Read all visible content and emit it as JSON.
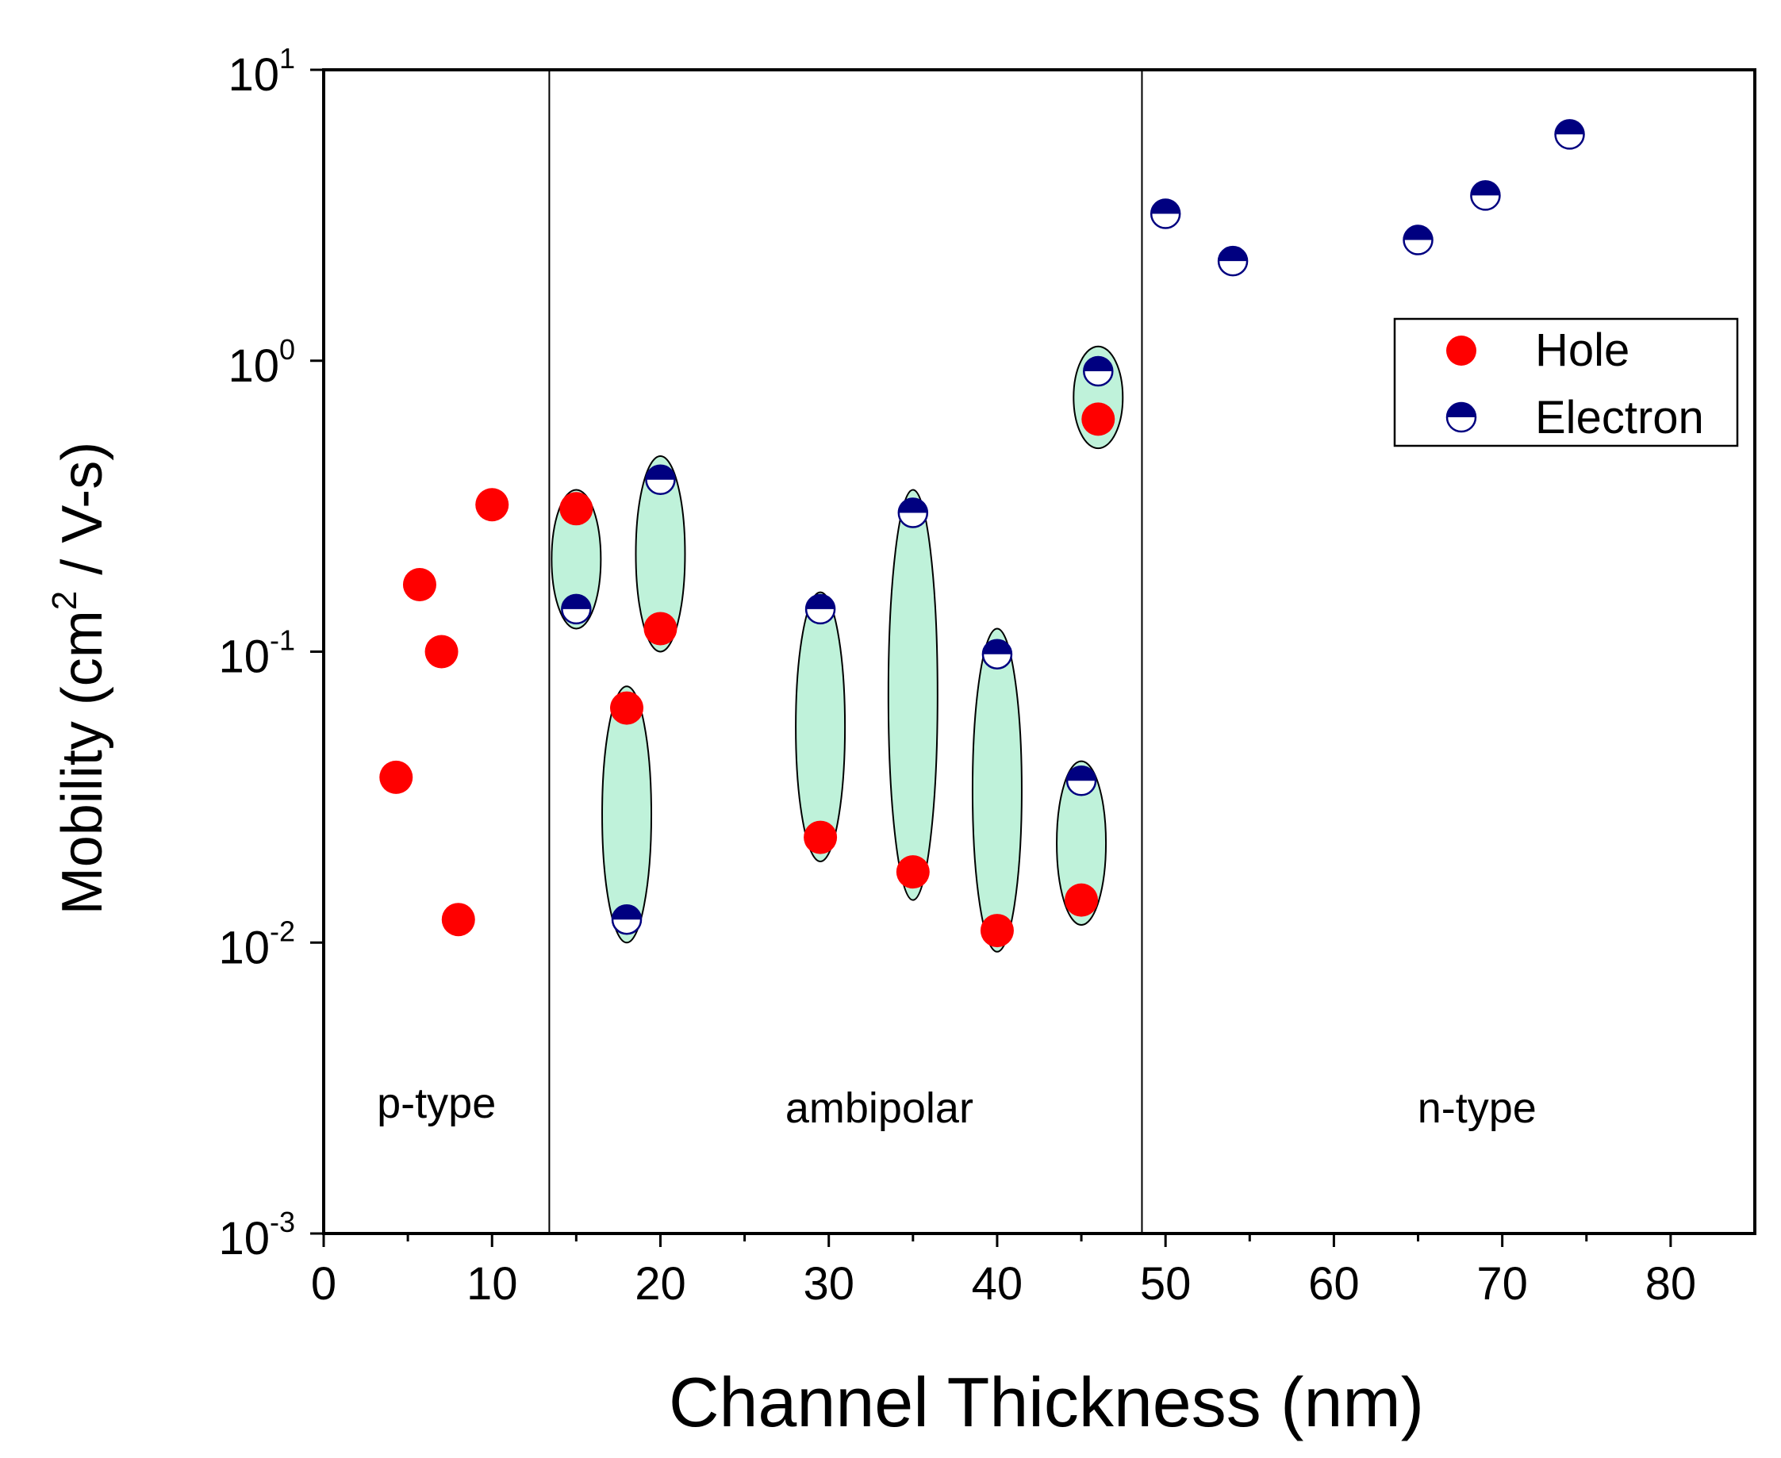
{
  "chart_data": {
    "type": "scatter",
    "title": "",
    "xlabel": "Channel Thickness (nm)",
    "ylabel": {
      "prefix": "Mobility (cm",
      "sup": "2",
      "suffix": " / V-s)"
    },
    "xlim": [
      0,
      85
    ],
    "ylim": [
      0.001,
      10
    ],
    "yscale": "log",
    "xticks": [
      0,
      10,
      20,
      30,
      40,
      50,
      60,
      70,
      80
    ],
    "yticks": [
      {
        "value": 0.001,
        "base": "10",
        "exp": "-3"
      },
      {
        "value": 0.01,
        "base": "10",
        "exp": "-2"
      },
      {
        "value": 0.1,
        "base": "10",
        "exp": "-1"
      },
      {
        "value": 1,
        "base": "10",
        "exp": "0"
      },
      {
        "value": 10,
        "base": "10",
        "exp": "1"
      }
    ],
    "grid": false,
    "legend_position": "top-right",
    "series": [
      {
        "name": "Hole",
        "color": "#ff0000",
        "marker": "filled-circle",
        "points": [
          {
            "x": 4.3,
            "y": 0.037
          },
          {
            "x": 5.7,
            "y": 0.17
          },
          {
            "x": 7.0,
            "y": 0.1
          },
          {
            "x": 8.0,
            "y": 0.012
          },
          {
            "x": 10.0,
            "y": 0.32
          },
          {
            "x": 15.0,
            "y": 0.31
          },
          {
            "x": 18.0,
            "y": 0.064
          },
          {
            "x": 20.0,
            "y": 0.12
          },
          {
            "x": 29.5,
            "y": 0.023
          },
          {
            "x": 35.0,
            "y": 0.0175
          },
          {
            "x": 40.0,
            "y": 0.011
          },
          {
            "x": 45.0,
            "y": 0.014
          },
          {
            "x": 46.0,
            "y": 0.63
          }
        ]
      },
      {
        "name": "Electron",
        "color": "#000080",
        "marker": "half-filled-circle",
        "points": [
          {
            "x": 15.0,
            "y": 0.14
          },
          {
            "x": 18.0,
            "y": 0.012
          },
          {
            "x": 20.0,
            "y": 0.39
          },
          {
            "x": 29.5,
            "y": 0.14
          },
          {
            "x": 35.0,
            "y": 0.3
          },
          {
            "x": 40.0,
            "y": 0.098
          },
          {
            "x": 45.0,
            "y": 0.036
          },
          {
            "x": 46.0,
            "y": 0.92
          },
          {
            "x": 50.0,
            "y": 3.2
          },
          {
            "x": 54.0,
            "y": 2.2
          },
          {
            "x": 65.0,
            "y": 2.6
          },
          {
            "x": 69.0,
            "y": 3.7
          },
          {
            "x": 74.0,
            "y": 6.0
          }
        ]
      }
    ],
    "ambipolar_pairs": [
      {
        "x": 15.0,
        "y_low": 0.12,
        "y_high": 0.36
      },
      {
        "x": 18.0,
        "y_low": 0.01,
        "y_high": 0.076
      },
      {
        "x": 20.0,
        "y_low": 0.1,
        "y_high": 0.47
      },
      {
        "x": 29.5,
        "y_low": 0.019,
        "y_high": 0.16
      },
      {
        "x": 35.0,
        "y_low": 0.014,
        "y_high": 0.36
      },
      {
        "x": 40.0,
        "y_low": 0.0093,
        "y_high": 0.12
      },
      {
        "x": 45.0,
        "y_low": 0.0115,
        "y_high": 0.042
      },
      {
        "x": 46.0,
        "y_low": 0.5,
        "y_high": 1.12
      }
    ],
    "region_dividers": [
      13.4,
      48.6
    ],
    "region_labels": [
      {
        "text": "p-type",
        "x": 6.7,
        "y": 0.0028
      },
      {
        "text": "ambipolar",
        "x": 33.0,
        "y": 0.0027
      },
      {
        "text": "n-type",
        "x": 68.5,
        "y": 0.0027
      }
    ],
    "colors": {
      "hole": "#ff0000",
      "electron": "#000080",
      "ellipse_fill": "#bff2da",
      "axis": "#000000"
    }
  }
}
